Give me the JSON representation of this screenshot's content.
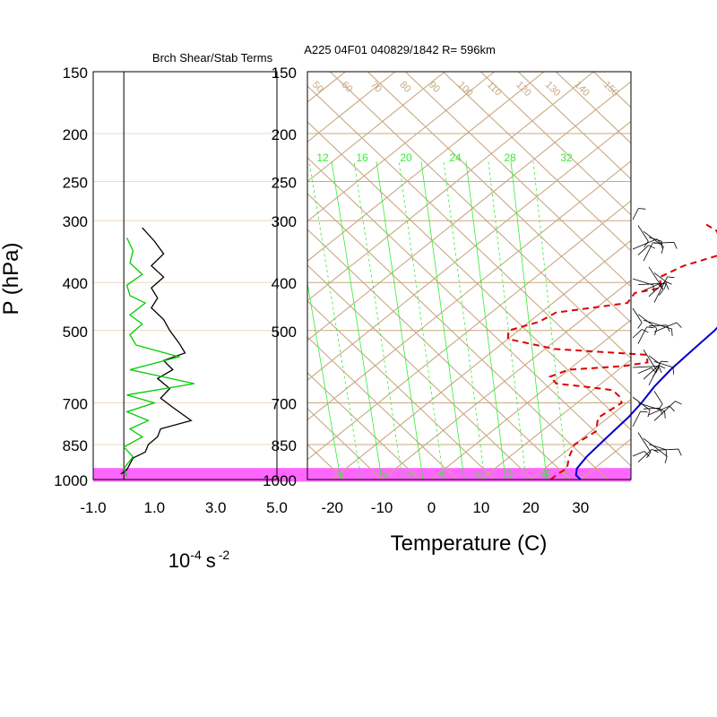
{
  "figure": {
    "top_title": "A225 04F01 040829/1842 R= 596km",
    "left_panel_title": "Brch Shear/Stab Terms",
    "y_axis_label": "P (hPa)",
    "left_x_unit_base": "10",
    "left_x_unit_exp": "-4",
    "left_x_unit_s": "s",
    "left_x_unit_exp2": "-2",
    "right_x_label": "Temperature (C)"
  },
  "chart_data": [
    {
      "type": "line",
      "panel": "shear-stability",
      "title": "Brch Shear/Stab Terms",
      "xlabel": "10-4 s -2",
      "ylabel": "P (hPa)",
      "y_scale": "log (reversed)",
      "ylim": [
        1000,
        150
      ],
      "xlim": [
        -1.0,
        5.0
      ],
      "x_tick_labels": [
        "-1.0",
        "1.0",
        "3.0",
        "5.0"
      ],
      "x_ticks": [
        -1,
        1,
        3,
        5
      ],
      "y_ticks": [
        150,
        200,
        250,
        300,
        400,
        500,
        700,
        850,
        1000
      ],
      "zero_line": 0,
      "series": [
        {
          "color": "#000000",
          "points": [
            [
              0.6,
              310
            ],
            [
              1.0,
              330
            ],
            [
              1.3,
              350
            ],
            [
              0.9,
              370
            ],
            [
              1.3,
              390
            ],
            [
              0.9,
              410
            ],
            [
              1.1,
              430
            ],
            [
              0.9,
              450
            ],
            [
              1.3,
              475
            ],
            [
              1.5,
              500
            ],
            [
              1.8,
              530
            ],
            [
              2.0,
              555
            ],
            [
              1.3,
              575
            ],
            [
              1.6,
              600
            ],
            [
              1.1,
              625
            ],
            [
              1.5,
              655
            ],
            [
              1.2,
              685
            ],
            [
              1.6,
              715
            ],
            [
              2.2,
              760
            ],
            [
              1.2,
              790
            ],
            [
              1.1,
              820
            ],
            [
              0.8,
              850
            ],
            [
              0.7,
              880
            ],
            [
              0.3,
              905
            ],
            [
              0.2,
              930
            ],
            [
              0.1,
              955
            ],
            [
              -0.1,
              975
            ]
          ]
        },
        {
          "color": "#00cc00",
          "points": [
            [
              0.1,
              325
            ],
            [
              0.3,
              345
            ],
            [
              0.2,
              365
            ],
            [
              0.6,
              385
            ],
            [
              0.1,
              405
            ],
            [
              0.2,
              425
            ],
            [
              0.7,
              440
            ],
            [
              0.2,
              465
            ],
            [
              0.6,
              485
            ],
            [
              0.2,
              510
            ],
            [
              0.4,
              535
            ],
            [
              1.8,
              565
            ],
            [
              0.2,
              600
            ],
            [
              2.3,
              640
            ],
            [
              0.1,
              675
            ],
            [
              1.0,
              700
            ],
            [
              0.1,
              730
            ],
            [
              0.8,
              760
            ],
            [
              0.2,
              790
            ],
            [
              0.6,
              820
            ],
            [
              0.0,
              860
            ],
            [
              0.3,
              900
            ],
            [
              0.0,
              950
            ],
            [
              0.1,
              985
            ]
          ]
        }
      ]
    },
    {
      "type": "line",
      "panel": "skew-t",
      "title": "A225 04F01 040829/1842 R= 596km",
      "xlabel": "Temperature (C)",
      "ylabel": "P (hPa)",
      "y_scale": "log (reversed)",
      "ylim": [
        1000,
        150
      ],
      "xlim": [
        -25,
        40
      ],
      "x_tick_labels": [
        "-20",
        "-10",
        "0",
        "10",
        "20",
        "30"
      ],
      "x_ticks": [
        -20,
        -10,
        0,
        10,
        20,
        30
      ],
      "y_tick_labels": [
        "150",
        "200",
        "250",
        "300",
        "400",
        "500",
        "700",
        "850",
        "1000"
      ],
      "y_ticks": [
        150,
        200,
        250,
        300,
        400,
        500,
        700,
        850,
        1000
      ],
      "mixing_ratio_labels": [
        "12",
        "16",
        "20",
        "24",
        "28",
        "32"
      ],
      "mixing_ratio_low_labels": [
        "1",
        "2",
        "3",
        "5",
        "8",
        "12",
        "20"
      ],
      "adiabat_labels": [
        "50",
        "60",
        "70",
        "80",
        "90",
        "100",
        "110",
        "120",
        "130",
        "140",
        "150"
      ],
      "highlight_layer_hpa": [
        948,
        1010
      ],
      "highlight_color": "#ff66ff",
      "isopleth_color": "#c8a882",
      "mixing_ratio_color": "#33ee33",
      "series": [
        {
          "name": "",
          "style": "solid",
          "color": "#0000cc",
          "points": [
            [
              30,
              1000
            ],
            [
              28,
              980
            ],
            [
              26.5,
              950
            ],
            [
              25.5,
              900
            ],
            [
              25,
              850
            ],
            [
              24.5,
              800
            ],
            [
              24,
              750
            ],
            [
              23,
              700
            ],
            [
              21.5,
              650
            ],
            [
              20.5,
              600
            ],
            [
              20,
              550
            ],
            [
              19.5,
              500
            ],
            [
              18,
              450
            ],
            [
              16.5,
              400
            ],
            [
              14.5,
              360
            ],
            [
              13,
              340
            ],
            [
              11,
              320
            ],
            [
              9.5,
              305
            ],
            [
              8,
              300
            ]
          ]
        },
        {
          "name": "",
          "style": "dashed",
          "color": "#dd0000",
          "points": [
            [
              24,
              1000
            ],
            [
              24,
              975
            ],
            [
              24.5,
              950
            ],
            [
              22,
              900
            ],
            [
              20,
              850
            ],
            [
              21,
              800
            ],
            [
              18,
              750
            ],
            [
              19,
              700
            ],
            [
              17,
              680
            ],
            [
              14,
              660
            ],
            [
              8,
              650
            ],
            [
              1,
              640
            ],
            [
              -2,
              620
            ],
            [
              0,
              600
            ],
            [
              10,
              590
            ],
            [
              14,
              580
            ],
            [
              12,
              560
            ],
            [
              -8,
              545
            ],
            [
              -20,
              520
            ],
            [
              -22,
              500
            ],
            [
              -18,
              480
            ],
            [
              -17,
              460
            ],
            [
              -5,
              440
            ],
            [
              -6,
              420
            ],
            [
              -2,
              410
            ],
            [
              -5,
              390
            ],
            [
              -3,
              370
            ],
            [
              2,
              350
            ],
            [
              -2,
              330
            ],
            [
              -5,
              315
            ],
            [
              -9,
              305
            ]
          ]
        }
      ],
      "wind_barbs": true
    }
  ]
}
